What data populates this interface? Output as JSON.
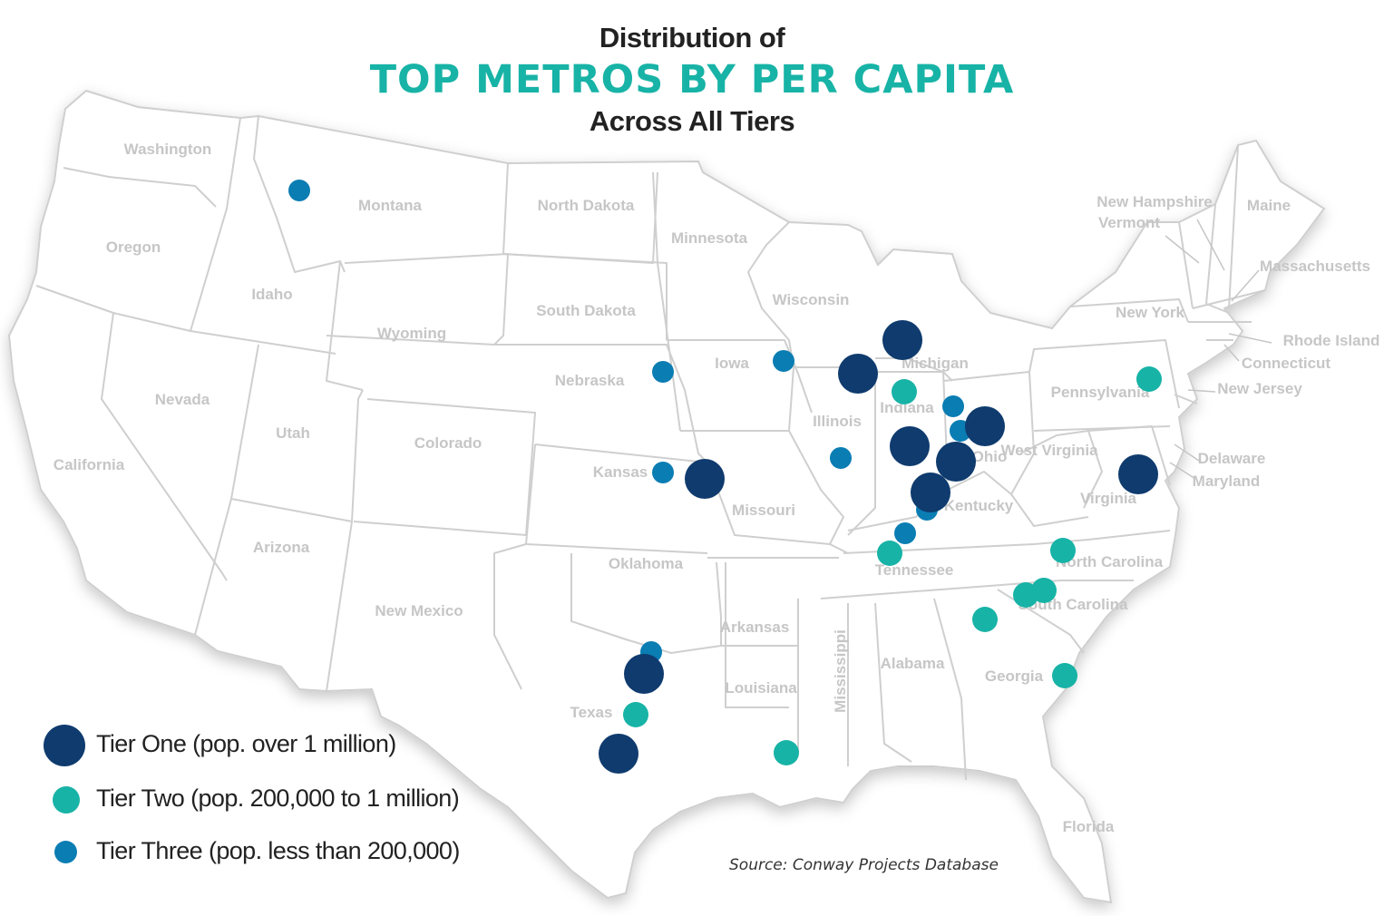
{
  "title": {
    "line1": "Distribution of",
    "line2": "TOP METROS BY PER CAPITA",
    "line3": "Across All Tiers"
  },
  "colors": {
    "tier_one": "#0f3b6e",
    "tier_two": "#17b3a6",
    "tier_three": "#0a7db3",
    "land": "#ffffff",
    "border": "#cfcfcf",
    "label": "#c6c6c6"
  },
  "states": [
    "Washington",
    "Oregon",
    "California",
    "Idaho",
    "Nevada",
    "Montana",
    "Wyoming",
    "Utah",
    "Arizona",
    "Colorado",
    "New Mexico",
    "North Dakota",
    "South Dakota",
    "Nebraska",
    "Kansas",
    "Oklahoma",
    "Texas",
    "Minnesota",
    "Iowa",
    "Missouri",
    "Arkansas",
    "Louisiana",
    "Wisconsin",
    "Illinois",
    "Mississippi",
    "Michigan",
    "Indiana",
    "Kentucky",
    "Tennessee",
    "Alabama",
    "Ohio",
    "West Virginia",
    "Virginia",
    "North Carolina",
    "South Carolina",
    "Georgia",
    "Florida",
    "Pennsylvania",
    "New York",
    "Vermont",
    "New Hampshire",
    "Maine",
    "Massachusetts",
    "Rhode Island",
    "Connecticut",
    "New Jersey",
    "Delaware",
    "Maryland"
  ],
  "legend": [
    {
      "tier": "tier_one",
      "label": "Tier One (pop. over 1 million)"
    },
    {
      "tier": "tier_two",
      "label": "Tier Two (pop. 200,000 to 1 million)"
    },
    {
      "tier": "tier_three",
      "label": "Tier Three (pop. less than 200,000)"
    }
  ],
  "metro_counts": {
    "tier_one": 11,
    "tier_two": 11,
    "tier_three": 11
  },
  "source": "Source: Conway Projects Database"
}
